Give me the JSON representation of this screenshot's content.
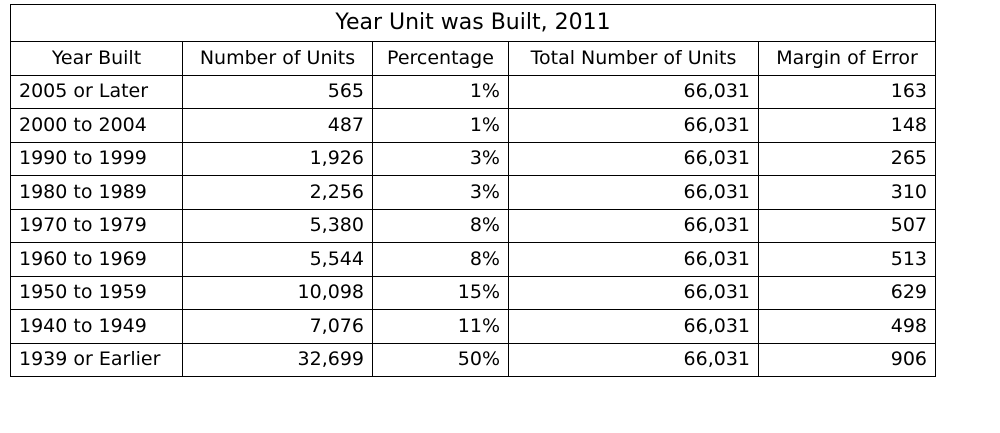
{
  "table": {
    "title": "Year Unit was Built, 2011",
    "headers": [
      "Year Built",
      "Number of Units",
      "Percentage",
      "Total Number of Units",
      "Margin of Error"
    ],
    "rows": [
      [
        "2005 or Later",
        "565",
        "1%",
        "66,031",
        "163"
      ],
      [
        "2000 to 2004",
        "487",
        "1%",
        "66,031",
        "148"
      ],
      [
        "1990 to 1999",
        "1,926",
        "3%",
        "66,031",
        "265"
      ],
      [
        "1980 to 1989",
        "2,256",
        "3%",
        "66,031",
        "310"
      ],
      [
        "1970 to 1979",
        "5,380",
        "8%",
        "66,031",
        "507"
      ],
      [
        "1960 to 1969",
        "5,544",
        "8%",
        "66,031",
        "513"
      ],
      [
        "1950 to 1959",
        "10,098",
        "15%",
        "66,031",
        "629"
      ],
      [
        "1940 to 1949",
        "7,076",
        "11%",
        "66,031",
        "498"
      ],
      [
        "1939 or Earlier",
        "32,699",
        "50%",
        "66,031",
        "906"
      ]
    ]
  }
}
